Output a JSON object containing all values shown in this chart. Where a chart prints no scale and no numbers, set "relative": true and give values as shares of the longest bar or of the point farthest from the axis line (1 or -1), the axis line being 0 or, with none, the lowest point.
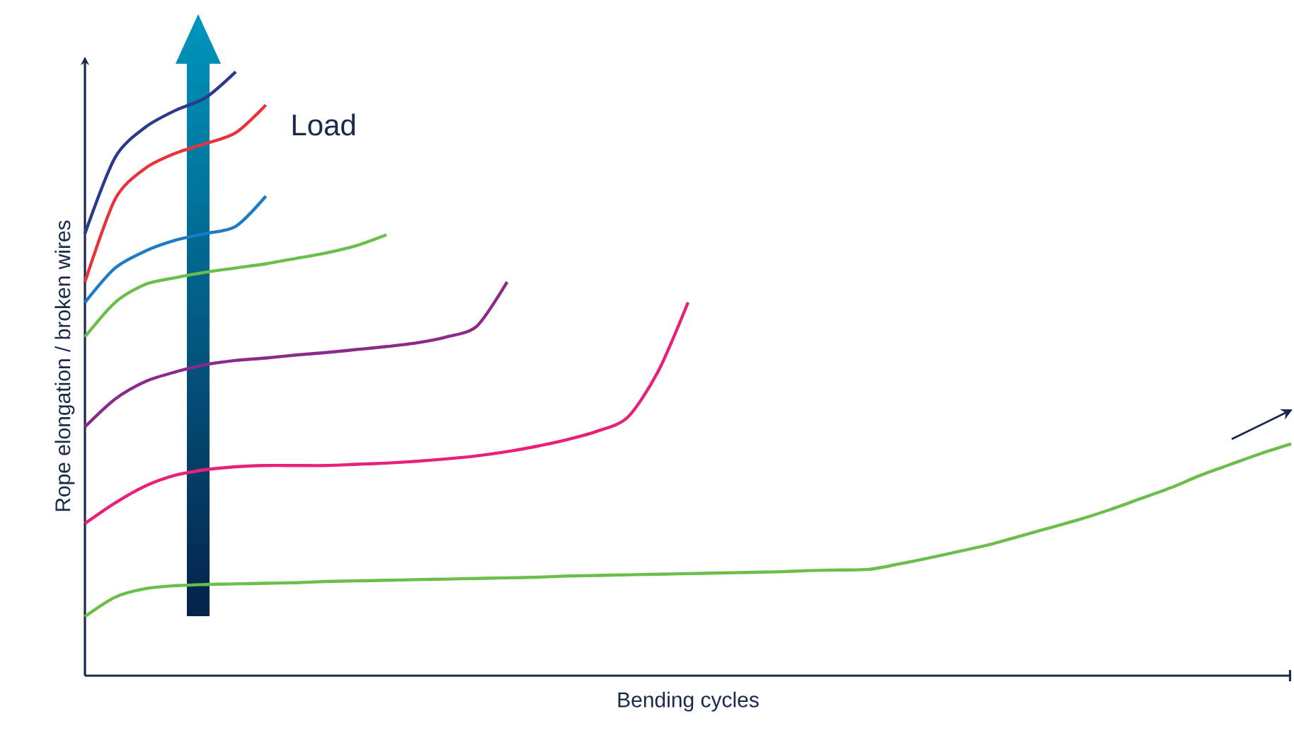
{
  "chart_data": {
    "type": "line",
    "relative": true,
    "xlabel": "Bending cycles",
    "ylabel": "Rope elongation / broken wires",
    "annotations": [
      "Load"
    ],
    "categories": [
      null,
      null,
      null,
      null,
      null,
      null,
      null,
      null,
      null,
      null,
      null,
      null,
      null,
      null,
      null,
      null,
      null,
      null,
      null,
      null,
      null,
      null,
      null,
      null,
      null,
      null,
      null,
      null,
      null,
      null,
      null,
      null,
      null,
      null,
      null,
      null,
      null,
      null,
      null,
      null,
      null
    ],
    "series": [
      {
        "color": "#2a3a8f",
        "values": [
          0.732,
          0.858,
          0.908,
          0.936,
          0.957,
          1.0,
          null,
          null,
          null,
          null,
          null,
          null,
          null,
          null,
          null,
          null,
          null,
          null,
          null,
          null,
          null,
          null,
          null,
          null,
          null,
          null,
          null,
          null,
          null,
          null,
          null,
          null,
          null,
          null,
          null,
          null,
          null,
          null,
          null,
          null,
          null
        ]
      },
      {
        "color": "#e8323c",
        "values": [
          0.652,
          0.789,
          0.84,
          0.865,
          0.881,
          0.899,
          0.945,
          null,
          null,
          null,
          null,
          null,
          null,
          null,
          null,
          null,
          null,
          null,
          null,
          null,
          null,
          null,
          null,
          null,
          null,
          null,
          null,
          null,
          null,
          null,
          null,
          null,
          null,
          null,
          null,
          null,
          null,
          null,
          null,
          null,
          null
        ]
      },
      {
        "color": "#1f7cc4",
        "values": [
          0.618,
          0.675,
          0.703,
          0.721,
          0.732,
          0.744,
          0.794,
          null,
          null,
          null,
          null,
          null,
          null,
          null,
          null,
          null,
          null,
          null,
          null,
          null,
          null,
          null,
          null,
          null,
          null,
          null,
          null,
          null,
          null,
          null,
          null,
          null,
          null,
          null,
          null,
          null,
          null,
          null,
          null,
          null,
          null
        ]
      },
      {
        "color": "#6abf4b",
        "values": [
          0.561,
          0.618,
          0.648,
          0.659,
          0.668,
          0.675,
          0.682,
          0.691,
          0.7,
          0.712,
          0.73,
          null,
          null,
          null,
          null,
          null,
          null,
          null,
          null,
          null,
          null,
          null,
          null,
          null,
          null,
          null,
          null,
          null,
          null,
          null,
          null,
          null,
          null,
          null,
          null,
          null,
          null,
          null,
          null,
          null,
          null
        ]
      },
      {
        "color": "#8b2a8b",
        "values": [
          0.412,
          0.458,
          0.487,
          0.503,
          0.515,
          0.522,
          0.526,
          0.531,
          0.535,
          0.54,
          0.545,
          0.551,
          0.561,
          0.579,
          0.652,
          null,
          null,
          null,
          null,
          null,
          null,
          null,
          null,
          null,
          null,
          null,
          null,
          null,
          null,
          null,
          null,
          null,
          null,
          null,
          null,
          null,
          null,
          null,
          null,
          null,
          null
        ]
      },
      {
        "color": "#e8207a",
        "values": [
          0.252,
          0.286,
          0.314,
          0.332,
          0.341,
          0.346,
          0.348,
          0.348,
          0.348,
          0.35,
          0.352,
          0.355,
          0.359,
          0.364,
          0.371,
          0.38,
          0.391,
          0.405,
          0.428,
          0.503,
          0.618,
          null,
          null,
          null,
          null,
          null,
          null,
          null,
          null,
          null,
          null,
          null,
          null,
          null,
          null,
          null,
          null,
          null,
          null,
          null,
          null
        ]
      },
      {
        "color": "#6abf4b",
        "values": [
          0.098,
          0.13,
          0.144,
          0.149,
          0.151,
          0.152,
          0.153,
          0.154,
          0.156,
          0.157,
          0.158,
          0.159,
          0.16,
          0.161,
          0.162,
          0.163,
          0.165,
          0.166,
          0.167,
          0.168,
          0.169,
          0.17,
          0.171,
          0.172,
          0.174,
          0.175,
          0.176,
          0.185,
          0.195,
          0.206,
          0.217,
          0.231,
          0.245,
          0.259,
          0.275,
          0.293,
          0.311,
          0.332,
          0.35,
          0.368,
          0.384
        ]
      }
    ]
  }
}
